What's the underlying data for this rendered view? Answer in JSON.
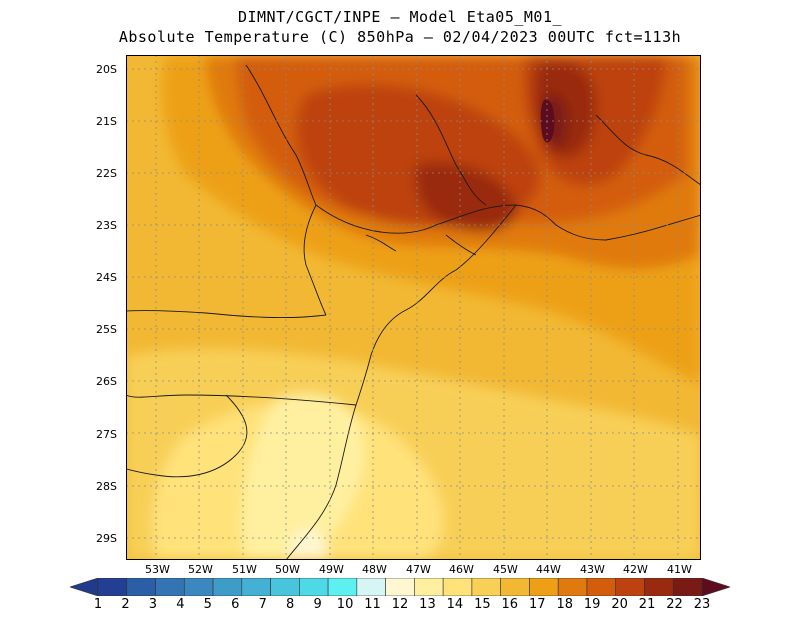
{
  "header": {
    "line1": "DIMNT/CGCT/INPE –  Model Eta05_M01_",
    "line2": "Absolute Temperature (C) 850hPa –  02/04/2023 00UTC fct=113h"
  },
  "map": {
    "lat_labels": [
      "20S",
      "21S",
      "22S",
      "23S",
      "24S",
      "25S",
      "26S",
      "27S",
      "28S",
      "29S"
    ],
    "lon_labels": [
      "53W",
      "52W",
      "51W",
      "50W",
      "49W",
      "48W",
      "47W",
      "46W",
      "45W",
      "44W",
      "43W",
      "42W",
      "41W"
    ]
  },
  "colorbar": {
    "labels": [
      "1",
      "2",
      "3",
      "4",
      "5",
      "6",
      "7",
      "8",
      "9",
      "10",
      "11",
      "12",
      "13",
      "14",
      "15",
      "16",
      "17",
      "18",
      "19",
      "20",
      "21",
      "22",
      "23"
    ],
    "colors": [
      "#1f3b8a",
      "#233f93",
      "#2a5ea6",
      "#3274b4",
      "#3a88bf",
      "#3e9cc9",
      "#43b0d4",
      "#48c4dd",
      "#4fd8e6",
      "#5ef0f0",
      "#d6f6f6",
      "#fff7d2",
      "#fff0a0",
      "#ffe27a",
      "#f8cf57",
      "#f2b834",
      "#eda015",
      "#e07a10",
      "#d35d0c",
      "#bd4210",
      "#9a2a0f",
      "#7a1a14",
      "#5c0c1e"
    ]
  }
}
